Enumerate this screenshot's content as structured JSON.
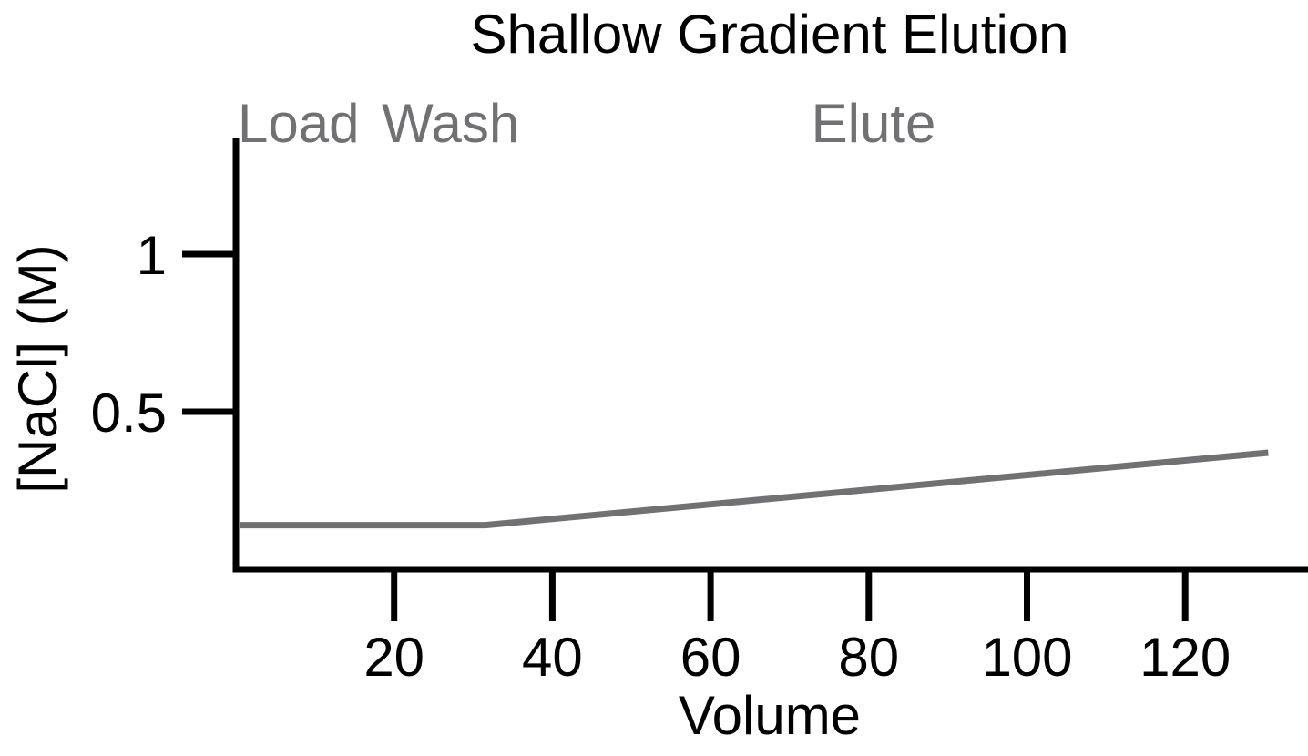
{
  "chart_data": {
    "type": "line",
    "title": "Shallow Gradient Elution",
    "xlabel": "Volume",
    "ylabel": "[NaCl] (M)",
    "xlim": [
      0,
      135
    ],
    "ylim": [
      0,
      1.3
    ],
    "x_ticks": [
      20,
      40,
      60,
      80,
      100,
      120
    ],
    "x_tick_labels": [
      "20",
      "40",
      "60",
      "80",
      "100",
      "120"
    ],
    "y_ticks": [
      0.5,
      1
    ],
    "y_tick_labels": [
      "0.5",
      "1"
    ],
    "series": [
      {
        "color": "#717073",
        "points": [
          {
            "x": 0.5,
            "y": 0.14
          },
          {
            "x": 31.5,
            "y": 0.14
          },
          {
            "x": 130.5,
            "y": 0.37
          }
        ]
      }
    ],
    "phases": [
      {
        "label": "Load",
        "x": 0
      },
      {
        "label": "Wash",
        "x": 18.2
      },
      {
        "label": "Elute",
        "x": 72.5
      }
    ],
    "phase_color": "#717073",
    "grid": false,
    "legend": "none"
  }
}
